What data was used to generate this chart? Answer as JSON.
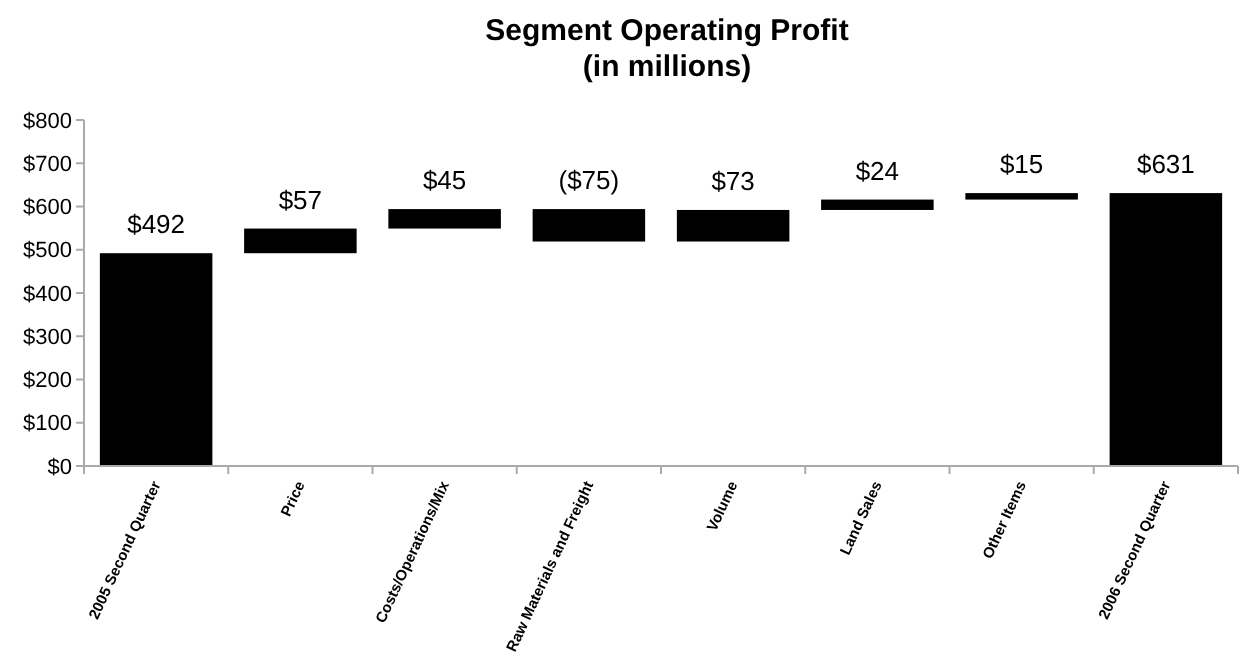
{
  "chart_data": {
    "type": "bar",
    "title": "Segment Operating Profit",
    "subtitle": "(in millions)",
    "categories": [
      "2005 Second Quarter",
      "Price",
      "Costs/Operations/Mix",
      "Raw Materials and Freight",
      "Volume",
      "Land Sales",
      "Other Items",
      "2006 Second Quarter"
    ],
    "values": [
      492,
      57,
      45,
      -75,
      73,
      24,
      15,
      631
    ],
    "base": [
      0,
      492,
      549,
      594,
      519,
      592,
      616,
      0
    ],
    "value_labels": [
      "$492",
      "$57",
      "$45",
      "($75)",
      "$73",
      "$24",
      "$15",
      "$631"
    ],
    "color": "#000000",
    "ylim": [
      0,
      800
    ],
    "yticks": [
      {
        "value": 0,
        "label": "$0"
      },
      {
        "value": 100,
        "label": "$100"
      },
      {
        "value": 200,
        "label": "$200"
      },
      {
        "value": 300,
        "label": "$300"
      },
      {
        "value": 400,
        "label": "$400"
      },
      {
        "value": 500,
        "label": "$500"
      },
      {
        "value": 600,
        "label": "$600"
      },
      {
        "value": 700,
        "label": "$700"
      },
      {
        "value": 800,
        "label": "$800"
      }
    ],
    "grid": false
  }
}
